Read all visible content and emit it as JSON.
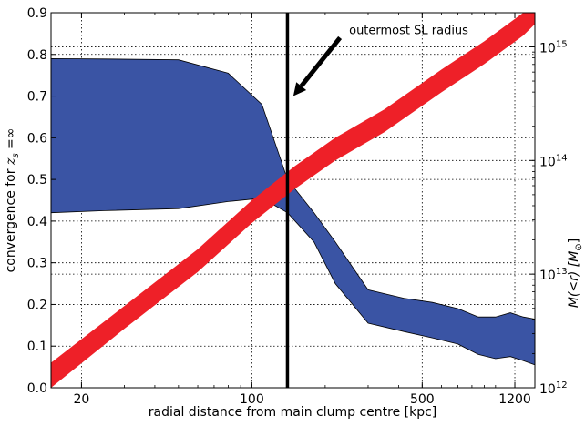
{
  "chart_data": {
    "type": "area",
    "xlabel": "radial distance from main clump centre [kpc]",
    "ylabel_left_prefix": "convergence for ",
    "ylabel_left_math": "z",
    "ylabel_left_sub": "s",
    "ylabel_left_suffix": " =∞",
    "ylabel_right": "M(<r) [M",
    "ylabel_right_sub": "⊙",
    "ylabel_right_suffix": "]",
    "x_scale": "log",
    "xlim": [
      15,
      1450
    ],
    "ylim_left": [
      0,
      0.9
    ],
    "ylim_right_log10": [
      12,
      15.3
    ],
    "x_tick_values": [
      20,
      100,
      500,
      1200
    ],
    "x_tick_labels": [
      "20",
      "100",
      "500",
      "1200"
    ],
    "y_left_tick_values": [
      0.0,
      0.1,
      0.2,
      0.3,
      0.4,
      0.5,
      0.6,
      0.7,
      0.8,
      0.9
    ],
    "y_left_tick_labels": [
      "0.0",
      "0.1",
      "0.2",
      "0.3",
      "0.4",
      "0.5",
      "0.6",
      "0.7",
      "0.8",
      "0.9"
    ],
    "y_right_ticks": [
      {
        "exp": 12,
        "base": "10",
        "sup": "12"
      },
      {
        "exp": 13,
        "base": "10",
        "sup": "13"
      },
      {
        "exp": 14,
        "base": "10",
        "sup": "14"
      },
      {
        "exp": 15,
        "base": "10",
        "sup": "15"
      }
    ],
    "grid": true,
    "series": [
      {
        "kind": "band",
        "axis": "left",
        "color": "#3a54a4",
        "x": [
          15,
          25,
          50,
          80,
          110,
          140,
          180,
          220,
          300,
          420,
          550,
          700,
          850,
          1000,
          1150,
          1300,
          1450
        ],
        "upper": [
          0.79,
          0.789,
          0.787,
          0.755,
          0.68,
          0.5,
          0.42,
          0.35,
          0.235,
          0.215,
          0.205,
          0.19,
          0.17,
          0.17,
          0.18,
          0.17,
          0.165
        ],
        "lower": [
          0.42,
          0.425,
          0.43,
          0.447,
          0.455,
          0.42,
          0.35,
          0.25,
          0.155,
          0.135,
          0.12,
          0.105,
          0.08,
          0.07,
          0.075,
          0.065,
          0.055
        ]
      },
      {
        "kind": "band",
        "axis": "right",
        "color": "#ee2028",
        "x": [
          15,
          30,
          60,
          100,
          150,
          220,
          350,
          600,
          900,
          1300,
          1450
        ],
        "upper_log10": [
          12.22,
          12.72,
          13.22,
          13.65,
          13.95,
          14.2,
          14.45,
          14.8,
          15.05,
          15.3,
          15.4
        ],
        "lower_log10": [
          12.0,
          12.52,
          13.02,
          13.45,
          13.75,
          14.0,
          14.25,
          14.6,
          14.85,
          15.1,
          15.2
        ]
      }
    ],
    "vline": {
      "x": 140,
      "color": "#000000"
    },
    "annotation": {
      "text": "outermost SL radius",
      "tail": {
        "x": 230,
        "y": 0.84
      },
      "head": {
        "x": 148,
        "y": 0.7
      }
    }
  }
}
